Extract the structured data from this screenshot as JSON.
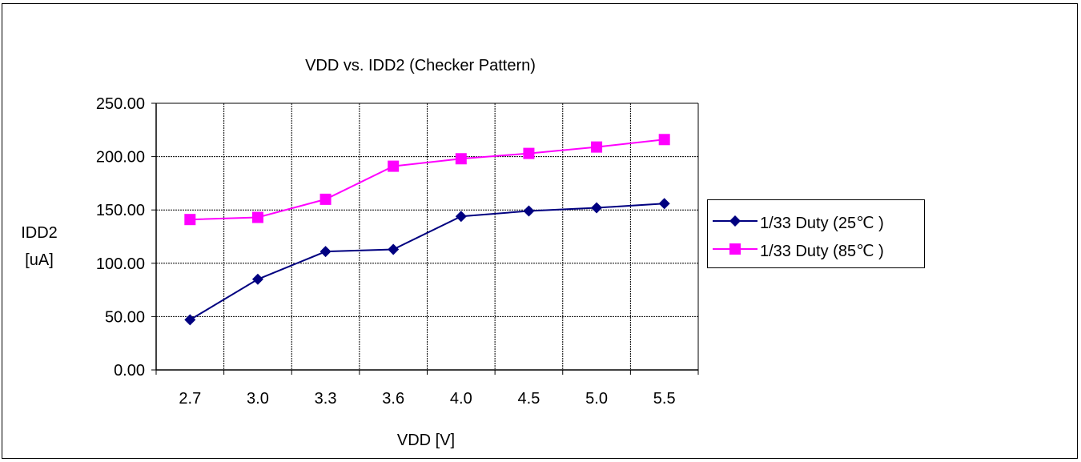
{
  "chart_data": {
    "type": "line",
    "title": "VDD vs. IDD2 (Checker Pattern)",
    "xlabel": "VDD [V]",
    "ylabel_line1": "IDD2",
    "ylabel_line2": "[uA]",
    "categories": [
      "2.7",
      "3.0",
      "3.3",
      "3.6",
      "4.0",
      "4.5",
      "5.0",
      "5.5"
    ],
    "yticks": [
      "0.00",
      "50.00",
      "100.00",
      "150.00",
      "200.00",
      "250.00"
    ],
    "ylim": [
      0,
      250
    ],
    "grid": true,
    "legend_position": "right",
    "series": [
      {
        "name": "1/33 Duty (25℃ )",
        "marker": "diamond",
        "color": "#000080",
        "values": [
          47,
          85,
          111,
          113,
          144,
          149,
          152,
          156
        ]
      },
      {
        "name": "1/33 Duty (85℃ )",
        "marker": "square",
        "color": "#ff00ff",
        "values": [
          141,
          143,
          160,
          191,
          198,
          203,
          209,
          216
        ]
      }
    ]
  }
}
